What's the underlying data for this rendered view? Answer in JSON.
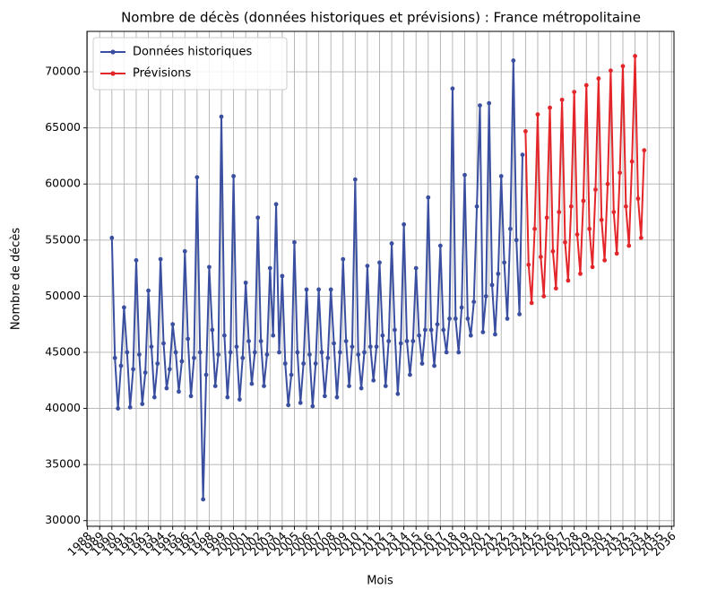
{
  "chart_data": {
    "type": "line",
    "title": "Nombre de décès (données historiques et prévisions) : France métropolitaine",
    "x_label": "Mois",
    "y_label": "Nombre de décès",
    "xlim": [
      1987.95,
      2036.2
    ],
    "ylim": [
      29500,
      73600
    ],
    "xticks": [
      1988,
      1989,
      1990,
      1991,
      1992,
      1993,
      1994,
      1995,
      1996,
      1997,
      1998,
      1999,
      2000,
      2001,
      2002,
      2003,
      2004,
      2005,
      2006,
      2007,
      2008,
      2009,
      2010,
      2011,
      2012,
      2013,
      2014,
      2015,
      2016,
      2017,
      2018,
      2019,
      2020,
      2021,
      2022,
      2023,
      2024,
      2025,
      2026,
      2027,
      2028,
      2029,
      2030,
      2031,
      2032,
      2033,
      2034,
      2035,
      2036
    ],
    "yticks": [
      30000,
      35000,
      40000,
      45000,
      50000,
      55000,
      60000,
      65000,
      70000
    ],
    "grid": true,
    "legend": "upper left",
    "series": [
      {
        "name": "Données historiques",
        "color": "#3a4fa0",
        "x": [
          1990,
          1990.25,
          1990.5,
          1990.75,
          1991,
          1991.25,
          1991.5,
          1991.75,
          1992,
          1992.25,
          1992.5,
          1992.75,
          1993,
          1993.25,
          1993.5,
          1993.75,
          1994,
          1994.25,
          1994.5,
          1994.75,
          1995,
          1995.25,
          1995.5,
          1995.75,
          1996,
          1996.25,
          1996.5,
          1996.75,
          1997,
          1997.25,
          1997.5,
          1997.75,
          1998,
          1998.25,
          1998.5,
          1998.75,
          1999,
          1999.25,
          1999.5,
          1999.75,
          2000,
          2000.25,
          2000.5,
          2000.75,
          2001,
          2001.25,
          2001.5,
          2001.75,
          2002,
          2002.25,
          2002.5,
          2002.75,
          2003,
          2003.25,
          2003.5,
          2003.75,
          2004,
          2004.25,
          2004.5,
          2004.75,
          2005,
          2005.25,
          2005.5,
          2005.75,
          2006,
          2006.25,
          2006.5,
          2006.75,
          2007,
          2007.25,
          2007.5,
          2007.75,
          2008,
          2008.25,
          2008.5,
          2008.75,
          2009,
          2009.25,
          2009.5,
          2009.75,
          2010,
          2010.25,
          2010.5,
          2010.75,
          2011,
          2011.25,
          2011.5,
          2011.75,
          2012,
          2012.25,
          2012.5,
          2012.75,
          2013,
          2013.25,
          2013.5,
          2013.75,
          2014,
          2014.25,
          2014.5,
          2014.75,
          2015,
          2015.25,
          2015.5,
          2015.75,
          2016,
          2016.25,
          2016.5,
          2016.75,
          2017,
          2017.25,
          2017.5,
          2017.75,
          2018,
          2018.25,
          2018.5,
          2018.75,
          2019,
          2019.25,
          2019.5,
          2019.75,
          2020,
          2020.25,
          2020.5,
          2020.75,
          2021,
          2021.25,
          2021.5,
          2021.75,
          2022,
          2022.25,
          2022.5,
          2022.75,
          2023,
          2023.25,
          2023.5,
          2023.75
        ],
        "values": [
          55200,
          44500,
          40000,
          43800,
          49000,
          45000,
          40100,
          43500,
          53200,
          44800,
          40400,
          43200,
          50500,
          45500,
          41000,
          44000,
          53300,
          45800,
          41800,
          43500,
          47500,
          45000,
          41500,
          44200,
          54000,
          46200,
          41100,
          44500,
          60600,
          45000,
          31900,
          43000,
          52600,
          47000,
          42000,
          44800,
          66000,
          46500,
          41000,
          45000,
          60700,
          45500,
          40800,
          44500,
          51200,
          46000,
          42200,
          45000,
          57000,
          46000,
          42000,
          44800,
          52500,
          46500,
          58200,
          45000,
          51800,
          44000,
          40300,
          43000,
          54800,
          45000,
          40500,
          44000,
          50600,
          44800,
          40200,
          44000,
          50600,
          45000,
          41100,
          44500,
          50600,
          45800,
          41000,
          45000,
          53300,
          46000,
          42000,
          45500,
          60400,
          44800,
          41800,
          45000,
          52700,
          45500,
          42500,
          45500,
          53000,
          46500,
          42000,
          46000,
          54700,
          47000,
          41300,
          45800,
          56400,
          46000,
          43000,
          46000,
          52500,
          46500,
          44000,
          47000,
          58800,
          47000,
          43800,
          47500,
          54500,
          47000,
          45000,
          48000,
          68500,
          48000,
          45000,
          49000,
          60800,
          48000,
          46500,
          49500,
          58000,
          67000,
          46800,
          50000,
          67200,
          51000,
          46600,
          52000,
          60700,
          53000,
          48000,
          56000,
          71000,
          55000,
          48400,
          62600
        ]
      },
      {
        "name": "Prévisions",
        "color": "#e3262a",
        "x": [
          2024,
          2024.25,
          2024.5,
          2024.75,
          2025,
          2025.25,
          2025.5,
          2025.75,
          2026,
          2026.25,
          2026.5,
          2026.75,
          2027,
          2027.25,
          2027.5,
          2027.75,
          2028,
          2028.25,
          2028.5,
          2028.75,
          2029,
          2029.25,
          2029.5,
          2029.75,
          2030,
          2030.25,
          2030.5,
          2030.75,
          2031,
          2031.25,
          2031.5,
          2031.75,
          2032,
          2032.25,
          2032.5,
          2032.75,
          2033,
          2033.25,
          2033.5,
          2033.75
        ],
        "values": [
          64700,
          52800,
          49400,
          56000,
          66200,
          53500,
          50000,
          57000,
          66800,
          54000,
          50700,
          57500,
          67500,
          54800,
          51400,
          58000,
          68200,
          55500,
          52000,
          58500,
          68800,
          56000,
          52600,
          59500,
          69400,
          56800,
          53200,
          60000,
          70100,
          57500,
          53800,
          61000,
          70500,
          58000,
          54500,
          62000,
          71400,
          58700,
          55200,
          63000
        ]
      }
    ]
  }
}
